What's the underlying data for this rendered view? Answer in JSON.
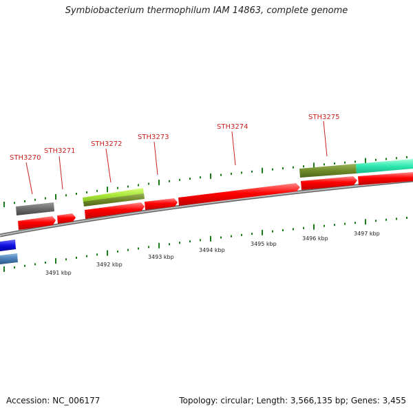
{
  "title": "Symbiobacterium thermophilum IAM 14863, complete genome",
  "footer": {
    "accession": "Accession: NC_006177",
    "stats": "Topology: circular; Length: 3,566,135 bp; Genes: 3,455"
  },
  "gene_labels": [
    {
      "id": "STH3270"
    },
    {
      "id": "STH3271"
    },
    {
      "id": "STH3272"
    },
    {
      "id": "STH3273"
    },
    {
      "id": "STH3274"
    },
    {
      "id": "STH3275"
    }
  ],
  "scale_labels": [
    "3491 kbp",
    "3492 kbp",
    "3493 kbp",
    "3494 kbp",
    "3495 kbp",
    "3496 kbp",
    "3497 kbp"
  ],
  "colors": {
    "cds": "#ff0000",
    "dark_gray_feature": "#6b6b6b",
    "lime_feature": "#a8e63a",
    "olive_feature": "#6f8a2a",
    "teal_feature": "#2ee8b0",
    "blue_feature": "#1010e0",
    "steel_blue_feature": "#4a7fb5",
    "ticks": "#1a7a1a",
    "backbone": "#8c8c8c",
    "label": "#cc1f1f"
  }
}
